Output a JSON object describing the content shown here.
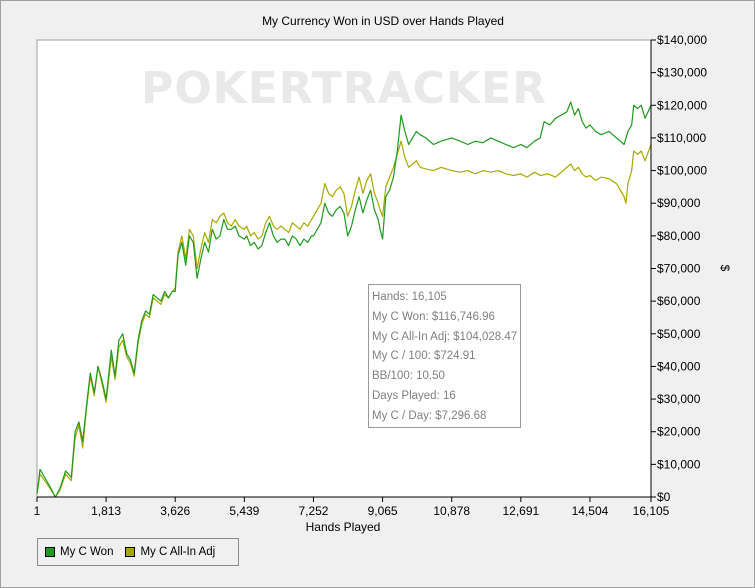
{
  "chart_data": {
    "type": "line",
    "title": "My Currency Won in USD over Hands Played",
    "xlabel": "Hands Played",
    "ylabel": "$",
    "xlim": [
      1,
      16105
    ],
    "ylim": [
      0,
      140000
    ],
    "x_ticks": [
      "1",
      "1,813",
      "3,626",
      "5,439",
      "7,252",
      "9,065",
      "10,878",
      "12,691",
      "14,504",
      "16,105"
    ],
    "y_ticks": [
      "$0",
      "$10,000",
      "$20,000",
      "$30,000",
      "$40,000",
      "$50,000",
      "$60,000",
      "$70,000",
      "$80,000",
      "$90,000",
      "$100,000",
      "$110,000",
      "$120,000",
      "$130,000",
      "$140,000"
    ],
    "y_axis_side": "right",
    "grid": false,
    "legend": "bottom-left",
    "watermark": "POKERTRACKER",
    "series": [
      {
        "name": "My C Won",
        "color": "#1e9a1e",
        "points": [
          [
            1,
            1000
          ],
          [
            80,
            8500
          ],
          [
            200,
            6000
          ],
          [
            350,
            3000
          ],
          [
            480,
            0
          ],
          [
            600,
            2500
          ],
          [
            750,
            8000
          ],
          [
            900,
            6000
          ],
          [
            1000,
            20000
          ],
          [
            1100,
            23000
          ],
          [
            1200,
            17000
          ],
          [
            1300,
            28000
          ],
          [
            1400,
            38000
          ],
          [
            1500,
            32000
          ],
          [
            1600,
            40000
          ],
          [
            1700,
            36000
          ],
          [
            1813,
            30000
          ],
          [
            1950,
            45000
          ],
          [
            2050,
            37000
          ],
          [
            2150,
            48000
          ],
          [
            2250,
            50000
          ],
          [
            2350,
            44000
          ],
          [
            2450,
            42000
          ],
          [
            2550,
            38000
          ],
          [
            2650,
            48000
          ],
          [
            2750,
            54000
          ],
          [
            2850,
            57000
          ],
          [
            2950,
            56000
          ],
          [
            3050,
            62000
          ],
          [
            3150,
            61000
          ],
          [
            3250,
            60000
          ],
          [
            3350,
            63000
          ],
          [
            3450,
            61000
          ],
          [
            3550,
            63000
          ],
          [
            3626,
            63000
          ],
          [
            3700,
            74000
          ],
          [
            3800,
            78000
          ],
          [
            3900,
            71000
          ],
          [
            4000,
            80000
          ],
          [
            4100,
            78000
          ],
          [
            4200,
            67000
          ],
          [
            4300,
            73000
          ],
          [
            4400,
            78000
          ],
          [
            4500,
            75000
          ],
          [
            4600,
            82000
          ],
          [
            4700,
            79000
          ],
          [
            4800,
            80000
          ],
          [
            4900,
            85000
          ],
          [
            5000,
            82000
          ],
          [
            5100,
            82000
          ],
          [
            5200,
            83000
          ],
          [
            5300,
            80000
          ],
          [
            5439,
            79000
          ],
          [
            5500,
            80000
          ],
          [
            5600,
            77000
          ],
          [
            5700,
            78000
          ],
          [
            5800,
            76000
          ],
          [
            5900,
            77000
          ],
          [
            6000,
            81000
          ],
          [
            6100,
            84000
          ],
          [
            6200,
            80000
          ],
          [
            6300,
            78000
          ],
          [
            6400,
            79000
          ],
          [
            6500,
            79000
          ],
          [
            6600,
            77000
          ],
          [
            6700,
            80000
          ],
          [
            6800,
            79000
          ],
          [
            6900,
            77000
          ],
          [
            7000,
            79000
          ],
          [
            7100,
            78000
          ],
          [
            7200,
            80000
          ],
          [
            7252,
            80000
          ],
          [
            7350,
            82000
          ],
          [
            7450,
            84000
          ],
          [
            7550,
            90000
          ],
          [
            7650,
            87000
          ],
          [
            7750,
            86000
          ],
          [
            7850,
            88000
          ],
          [
            7950,
            89000
          ],
          [
            8050,
            87000
          ],
          [
            8150,
            80000
          ],
          [
            8250,
            83000
          ],
          [
            8350,
            88000
          ],
          [
            8450,
            92000
          ],
          [
            8550,
            87000
          ],
          [
            8650,
            91000
          ],
          [
            8750,
            94000
          ],
          [
            8850,
            88000
          ],
          [
            8950,
            85000
          ],
          [
            9000,
            82000
          ],
          [
            9065,
            79000
          ],
          [
            9150,
            92000
          ],
          [
            9250,
            94000
          ],
          [
            9350,
            98000
          ],
          [
            9450,
            106000
          ],
          [
            9550,
            117000
          ],
          [
            9650,
            112000
          ],
          [
            9750,
            108000
          ],
          [
            9850,
            110000
          ],
          [
            9950,
            112000
          ],
          [
            10050,
            111000
          ],
          [
            10200,
            110000
          ],
          [
            10400,
            108000
          ],
          [
            10600,
            109000
          ],
          [
            10878,
            110000
          ],
          [
            11100,
            109000
          ],
          [
            11300,
            108000
          ],
          [
            11500,
            109000
          ],
          [
            11700,
            108500
          ],
          [
            11900,
            110000
          ],
          [
            12100,
            109000
          ],
          [
            12300,
            108000
          ],
          [
            12500,
            107000
          ],
          [
            12691,
            108000
          ],
          [
            12850,
            107000
          ],
          [
            13050,
            109000
          ],
          [
            13200,
            110000
          ],
          [
            13300,
            115000
          ],
          [
            13450,
            114000
          ],
          [
            13600,
            116000
          ],
          [
            13750,
            117000
          ],
          [
            13900,
            118000
          ],
          [
            14000,
            121000
          ],
          [
            14100,
            117000
          ],
          [
            14200,
            119000
          ],
          [
            14300,
            115000
          ],
          [
            14400,
            113000
          ],
          [
            14504,
            114000
          ],
          [
            14650,
            112000
          ],
          [
            14800,
            111000
          ],
          [
            15000,
            112000
          ],
          [
            15200,
            110000
          ],
          [
            15400,
            108000
          ],
          [
            15500,
            112000
          ],
          [
            15600,
            114000
          ],
          [
            15650,
            120000
          ],
          [
            15750,
            119000
          ],
          [
            15850,
            120000
          ],
          [
            15950,
            116000
          ],
          [
            16105,
            120000
          ]
        ]
      },
      {
        "name": "My C All-In Adj",
        "color": "#a8a800",
        "points": [
          [
            1,
            1000
          ],
          [
            80,
            7000
          ],
          [
            200,
            5000
          ],
          [
            350,
            2500
          ],
          [
            480,
            0
          ],
          [
            600,
            2000
          ],
          [
            750,
            7000
          ],
          [
            900,
            5000
          ],
          [
            1000,
            18000
          ],
          [
            1100,
            22000
          ],
          [
            1200,
            15000
          ],
          [
            1300,
            27000
          ],
          [
            1400,
            37000
          ],
          [
            1500,
            31000
          ],
          [
            1600,
            40000
          ],
          [
            1700,
            35000
          ],
          [
            1813,
            29000
          ],
          [
            1950,
            43000
          ],
          [
            2050,
            36000
          ],
          [
            2150,
            46000
          ],
          [
            2250,
            48000
          ],
          [
            2350,
            43000
          ],
          [
            2450,
            41000
          ],
          [
            2550,
            37000
          ],
          [
            2650,
            47000
          ],
          [
            2750,
            53000
          ],
          [
            2850,
            56000
          ],
          [
            2950,
            55000
          ],
          [
            3050,
            61000
          ],
          [
            3150,
            60000
          ],
          [
            3250,
            59000
          ],
          [
            3350,
            62000
          ],
          [
            3450,
            61000
          ],
          [
            3550,
            63000
          ],
          [
            3626,
            64000
          ],
          [
            3700,
            75000
          ],
          [
            3800,
            80000
          ],
          [
            3900,
            73000
          ],
          [
            4000,
            82000
          ],
          [
            4100,
            80000
          ],
          [
            4200,
            70000
          ],
          [
            4300,
            76000
          ],
          [
            4400,
            81000
          ],
          [
            4500,
            78000
          ],
          [
            4600,
            85000
          ],
          [
            4700,
            84000
          ],
          [
            4800,
            86000
          ],
          [
            4900,
            87000
          ],
          [
            5000,
            84000
          ],
          [
            5100,
            83000
          ],
          [
            5200,
            85000
          ],
          [
            5300,
            83000
          ],
          [
            5439,
            82000
          ],
          [
            5500,
            83000
          ],
          [
            5600,
            80000
          ],
          [
            5700,
            81000
          ],
          [
            5800,
            79000
          ],
          [
            5900,
            80000
          ],
          [
            6000,
            84000
          ],
          [
            6100,
            86000
          ],
          [
            6200,
            83000
          ],
          [
            6300,
            82000
          ],
          [
            6400,
            83000
          ],
          [
            6500,
            82000
          ],
          [
            6600,
            81000
          ],
          [
            6700,
            84000
          ],
          [
            6800,
            83000
          ],
          [
            6900,
            82000
          ],
          [
            7000,
            84000
          ],
          [
            7100,
            83000
          ],
          [
            7200,
            85000
          ],
          [
            7252,
            86000
          ],
          [
            7350,
            88000
          ],
          [
            7450,
            90000
          ],
          [
            7550,
            96000
          ],
          [
            7650,
            93000
          ],
          [
            7750,
            92000
          ],
          [
            7850,
            94000
          ],
          [
            7950,
            95000
          ],
          [
            8050,
            93000
          ],
          [
            8150,
            86000
          ],
          [
            8250,
            89000
          ],
          [
            8350,
            94000
          ],
          [
            8450,
            98000
          ],
          [
            8550,
            93000
          ],
          [
            8650,
            97000
          ],
          [
            8750,
            99000
          ],
          [
            8850,
            93000
          ],
          [
            8950,
            90000
          ],
          [
            9000,
            88000
          ],
          [
            9065,
            86000
          ],
          [
            9150,
            95000
          ],
          [
            9250,
            98000
          ],
          [
            9350,
            101000
          ],
          [
            9450,
            105000
          ],
          [
            9550,
            109000
          ],
          [
            9650,
            104000
          ],
          [
            9750,
            101000
          ],
          [
            9850,
            102000
          ],
          [
            9950,
            103000
          ],
          [
            10050,
            101000
          ],
          [
            10200,
            100500
          ],
          [
            10400,
            100000
          ],
          [
            10600,
            101000
          ],
          [
            10878,
            100000
          ],
          [
            11100,
            99500
          ],
          [
            11300,
            100000
          ],
          [
            11500,
            99000
          ],
          [
            11700,
            100000
          ],
          [
            11900,
            99500
          ],
          [
            12100,
            100000
          ],
          [
            12300,
            99000
          ],
          [
            12500,
            98500
          ],
          [
            12691,
            99000
          ],
          [
            12850,
            98000
          ],
          [
            13050,
            99500
          ],
          [
            13200,
            98500
          ],
          [
            13400,
            99000
          ],
          [
            13600,
            98000
          ],
          [
            13800,
            100000
          ],
          [
            14000,
            102000
          ],
          [
            14100,
            100000
          ],
          [
            14200,
            101000
          ],
          [
            14300,
            99000
          ],
          [
            14400,
            98000
          ],
          [
            14504,
            98500
          ],
          [
            14650,
            97000
          ],
          [
            14800,
            98000
          ],
          [
            15000,
            97500
          ],
          [
            15200,
            96000
          ],
          [
            15400,
            92000
          ],
          [
            15450,
            90000
          ],
          [
            15500,
            96000
          ],
          [
            15600,
            100000
          ],
          [
            15650,
            106000
          ],
          [
            15750,
            105000
          ],
          [
            15850,
            106000
          ],
          [
            15950,
            103000
          ],
          [
            16105,
            108000
          ]
        ]
      }
    ]
  },
  "tooltip": {
    "lines": [
      "Hands: 16,105",
      "My C Won: $116,746.96",
      "My C All-In Adj: $104,028.47",
      "My C / 100: $724.91",
      "BB/100: 10.50",
      "Days Played: 16",
      "My C / Day: $7,296.68"
    ]
  },
  "legend": {
    "items": [
      {
        "label": "My C Won",
        "color": "#1e9a1e"
      },
      {
        "label": "My C All-In Adj",
        "color": "#a8a800"
      }
    ]
  }
}
